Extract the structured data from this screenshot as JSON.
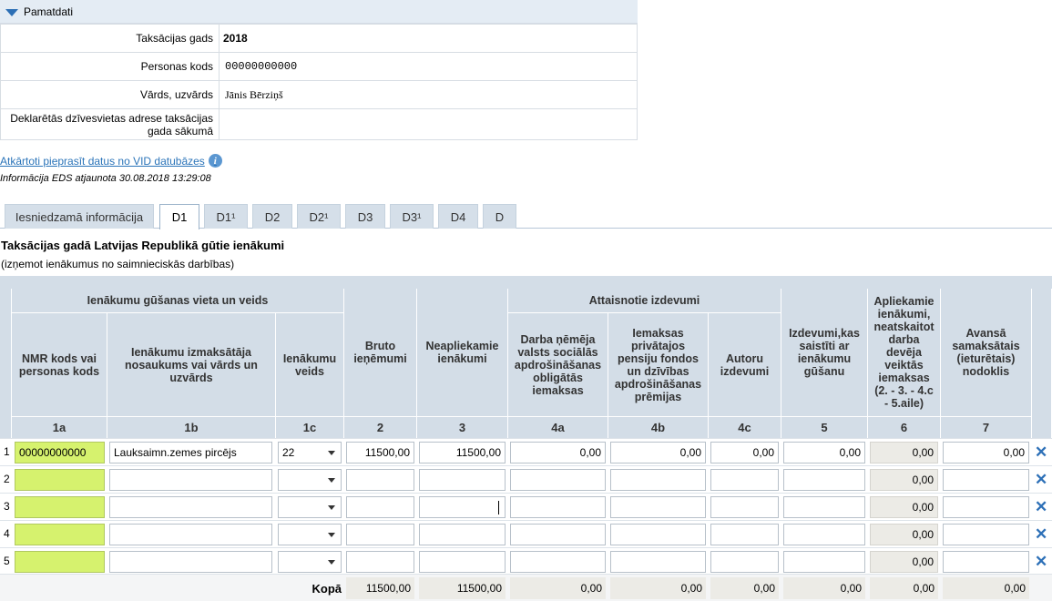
{
  "panel": {
    "title": "Pamatdati",
    "rows": [
      {
        "label": "Taksācijas gads",
        "value": "2018"
      },
      {
        "label": "Personas kods",
        "value": "00000000000"
      },
      {
        "label": "Vārds, uzvārds",
        "value": "Jānis Bērziņš"
      },
      {
        "label": "Deklarētās dzīvesvietas adrese taksācijas gada sākumā",
        "value": ""
      }
    ]
  },
  "vid_link": "Atkārtoti pieprasīt datus no VID datubāzes",
  "eds_note": "Informācija EDS atjaunota 30.08.2018 13:29:08",
  "tabs": [
    "Iesniedzamā informācija",
    "D1",
    "D1¹",
    "D2",
    "D2¹",
    "D3",
    "D3¹",
    "D4",
    "D"
  ],
  "active_tab": "D1",
  "section": {
    "title": "Taksācijas gadā Latvijas Republikā gūtie ienākumi",
    "subtitle": "(izņemot ienākumus no saimnieciskās darbības)"
  },
  "table": {
    "group1": "Ienākumu gūšanas vieta un veids",
    "group2": "Attaisnotie izdevumi",
    "columns": {
      "c1a": "NMR kods vai personas kods",
      "c1b": "Ienākumu izmaksātāja nosaukums vai vārds un uzvārds",
      "c1c": "Ienākumu veids",
      "c2": "Bruto ieņēmumi",
      "c3": "Neapliekamie ienākumi",
      "c4a": "Darba ņēmēja valsts sociālās apdrošināšanas obligātās iemaksas",
      "c4b": "Iemaksas privātajos pensiju fondos un dzīvības apdrošināšanas prēmijas",
      "c4c": "Autoru izdevumi",
      "c5": "Izdevumi,kas saistīti ar ienākumu gūšanu",
      "c6": "Apliekamie ienākumi, neatskaitot darba devēja veiktās iemaksas (2. - 3. - 4.c - 5.aile)",
      "c7": "Avansā samaksātais (ieturētais) nodoklis"
    },
    "col_numbers": [
      "1a",
      "1b",
      "1c",
      "2",
      "3",
      "4a",
      "4b",
      "4c",
      "5",
      "6",
      "7"
    ],
    "rows": [
      {
        "n": "1",
        "c1a": "00000000000",
        "c1b": "Lauksaimn.zemes pircējs",
        "c1c": "22",
        "c2": "11500,00",
        "c3": "11500,00",
        "c4a": "0,00",
        "c4b": "0,00",
        "c4c": "0,00",
        "c5": "0,00",
        "c6": "0,00",
        "c7": "0,00"
      },
      {
        "n": "2",
        "c1a": "",
        "c1b": "",
        "c1c": "",
        "c2": "",
        "c3": "",
        "c4a": "",
        "c4b": "",
        "c4c": "",
        "c5": "",
        "c6": "0,00",
        "c7": ""
      },
      {
        "n": "3",
        "c1a": "",
        "c1b": "",
        "c1c": "",
        "c2": "",
        "c3": "",
        "c4a": "",
        "c4b": "",
        "c4c": "",
        "c5": "",
        "c6": "0,00",
        "c7": ""
      },
      {
        "n": "4",
        "c1a": "",
        "c1b": "",
        "c1c": "",
        "c2": "",
        "c3": "",
        "c4a": "",
        "c4b": "",
        "c4c": "",
        "c5": "",
        "c6": "0,00",
        "c7": ""
      },
      {
        "n": "5",
        "c1a": "",
        "c1b": "",
        "c1c": "",
        "c2": "",
        "c3": "",
        "c4a": "",
        "c4b": "",
        "c4c": "",
        "c5": "",
        "c6": "0,00",
        "c7": ""
      }
    ],
    "total": {
      "label": "Kopā",
      "c2": "11500,00",
      "c3": "11500,00",
      "c4a": "0,00",
      "c4b": "0,00",
      "c4c": "0,00",
      "c5": "0,00",
      "c6": "0,00",
      "c7": "0,00"
    }
  },
  "colors": {
    "accent": "#2b74b9",
    "required_field": "#d6f26e",
    "header_bg": "#d3dde7"
  }
}
